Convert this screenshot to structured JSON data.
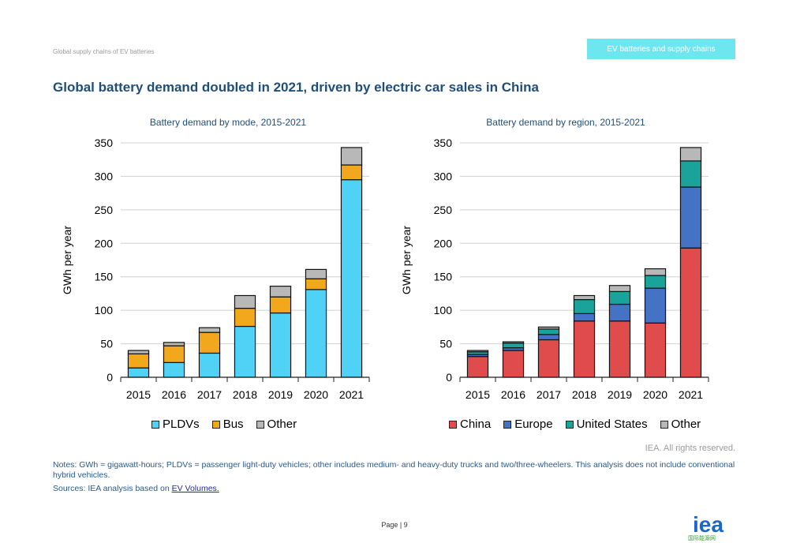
{
  "header": {
    "left_text": "Global supply chains of EV batteries",
    "tab_text": "EV batteries and supply chains",
    "tab_color": "#6ee6f0"
  },
  "title": "Global battery demand doubled in 2021, driven by electric car sales in China",
  "credit": "IEA. All rights reserved.",
  "notes": "Notes: GWh = gigawatt-hours; PLDVs = passenger light-duty vehicles; other includes medium- and heavy-duty trucks and two/three-wheelers. This analysis does not include conventional hybrid vehicles.",
  "sources_prefix": "Sources: IEA analysis based on ",
  "sources_link": "EV Volumes.",
  "page_label": "Page | 9",
  "logo_text": "iea",
  "watermark": "国际能源网",
  "chart_data": [
    {
      "type": "bar",
      "stacked": true,
      "title": "Battery demand by mode, 2015-2021",
      "ylabel": "GWh per year",
      "xlabel": "",
      "ylim": [
        0,
        350
      ],
      "yticks": [
        0,
        50,
        100,
        150,
        200,
        250,
        300,
        350
      ],
      "grid": true,
      "legend": "bottom",
      "categories": [
        "2015",
        "2016",
        "2017",
        "2018",
        "2019",
        "2020",
        "2021"
      ],
      "series": [
        {
          "name": "PLDVs",
          "color": "#4fd2f5",
          "values": [
            14,
            22,
            36,
            76,
            96,
            131,
            295
          ]
        },
        {
          "name": "Bus",
          "color": "#f2a81d",
          "values": [
            21,
            25,
            31,
            27,
            24,
            16,
            22
          ]
        },
        {
          "name": "Other",
          "color": "#b8b8b8",
          "values": [
            5,
            5,
            7,
            19,
            16,
            14,
            26
          ]
        }
      ]
    },
    {
      "type": "bar",
      "stacked": true,
      "title": "Battery demand by region, 2015-2021",
      "ylabel": "GWh per year",
      "xlabel": "",
      "ylim": [
        0,
        350
      ],
      "yticks": [
        0,
        50,
        100,
        150,
        200,
        250,
        300,
        350
      ],
      "grid": true,
      "legend": "bottom",
      "categories": [
        "2015",
        "2016",
        "2017",
        "2018",
        "2019",
        "2020",
        "2021"
      ],
      "series": [
        {
          "name": "China",
          "color": "#e04c4c",
          "values": [
            31,
            40,
            56,
            84,
            84,
            81,
            193
          ]
        },
        {
          "name": "Europe",
          "color": "#4472c4",
          "values": [
            3,
            4,
            8,
            11,
            25,
            52,
            91
          ]
        },
        {
          "name": "United States",
          "color": "#1aa39a",
          "values": [
            4,
            7,
            8,
            21,
            19,
            19,
            39
          ]
        },
        {
          "name": "Other",
          "color": "#b8b8b8",
          "values": [
            2,
            2,
            3,
            6,
            9,
            10,
            20
          ]
        }
      ]
    }
  ]
}
